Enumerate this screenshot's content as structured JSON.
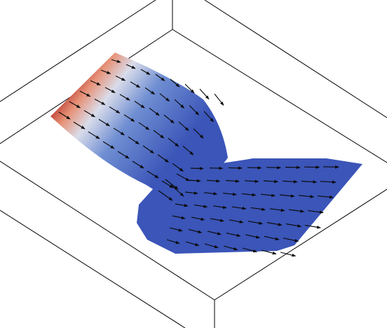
{
  "scene": {
    "background": "#ffffff",
    "box_line_color": "#000000",
    "arrow_color": "#0b0b0b",
    "colormap": [
      "#b8372c",
      "#e79379",
      "#d9dcea",
      "#6f8ed2",
      "#3b55b8"
    ],
    "colorbar_shown": false,
    "axes_labels_shown": false
  }
}
